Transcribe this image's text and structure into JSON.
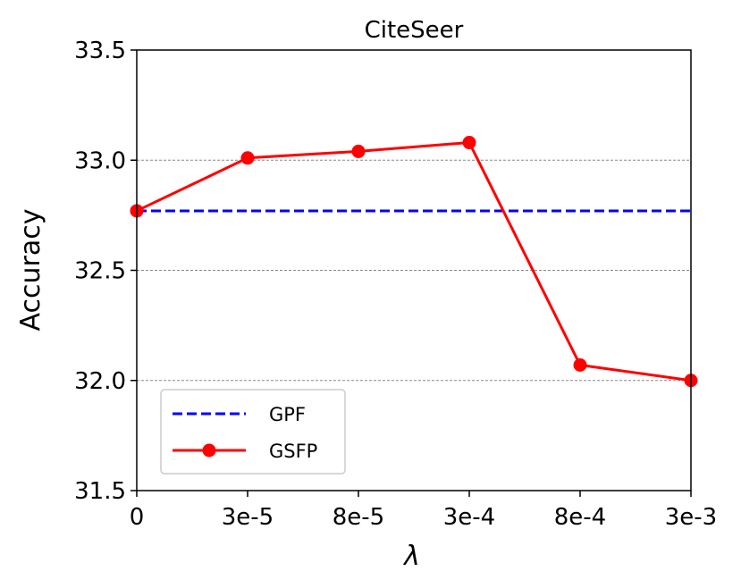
{
  "chart_data": {
    "type": "line",
    "title": "CiteSeer",
    "xlabel": "λ",
    "ylabel": "Accuracy",
    "categories": [
      "0",
      "3e-5",
      "8e-5",
      "3e-4",
      "8e-4",
      "3e-3"
    ],
    "ylim": [
      31.5,
      33.5
    ],
    "yticks": [
      "31.5",
      "32.0",
      "32.5",
      "33.0",
      "33.5"
    ],
    "ytick_values": [
      31.5,
      32.0,
      32.5,
      33.0,
      33.5
    ],
    "grid": "horizontal dashed at 32.0, 32.5, 33.0",
    "legend_position": "lower-left",
    "series": [
      {
        "name": "GPF",
        "style": "dashed",
        "color": "#0000ff",
        "values": [
          32.77,
          32.77,
          32.77,
          32.77,
          32.77,
          32.77
        ]
      },
      {
        "name": "GSFP",
        "style": "solid-marker",
        "color": "#ff0000",
        "values": [
          32.77,
          33.01,
          33.04,
          33.08,
          32.07,
          32.0
        ]
      }
    ]
  }
}
